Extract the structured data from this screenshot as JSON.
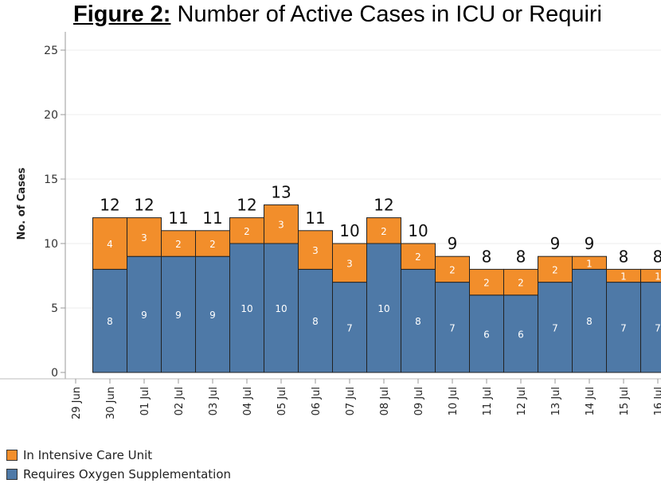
{
  "title": {
    "lead": "Figure 2:",
    "rest": "Number of Active Cases in ICU or Requiri"
  },
  "colors": {
    "icu": "#f28e2b",
    "oxygen": "#4e79a7",
    "grid": "#ececec",
    "axis": "#999999"
  },
  "chart_data": {
    "type": "bar",
    "stacked": true,
    "title": "Figure 2: Number of Active Cases in ICU or Requiri",
    "xlabel": "",
    "ylabel": "No. of Cases",
    "ylim": [
      0,
      26
    ],
    "yticks": [
      0,
      5,
      10,
      15,
      20,
      25
    ],
    "grid": true,
    "legend_position": "bottom-left",
    "categories": [
      "29 Jun",
      "30 Jun",
      "01 Jul",
      "02 Jul",
      "03 Jul",
      "04 Jul",
      "05 Jul",
      "06 Jul",
      "07 Jul",
      "08 Jul",
      "09 Jul",
      "10 Jul",
      "11 Jul",
      "12 Jul",
      "13 Jul",
      "14 Jul",
      "15 Jul",
      "16 Jul"
    ],
    "series": [
      {
        "name": "Requires Oxygen Supplementation",
        "color": "#4e79a7",
        "values": [
          null,
          8,
          9,
          9,
          9,
          10,
          10,
          8,
          7,
          10,
          8,
          7,
          6,
          6,
          7,
          8,
          7,
          7
        ]
      },
      {
        "name": "In Intensive Care Unit",
        "color": "#f28e2b",
        "values": [
          null,
          4,
          3,
          2,
          2,
          2,
          3,
          3,
          3,
          2,
          2,
          2,
          2,
          2,
          2,
          1,
          1,
          1
        ]
      }
    ],
    "totals": [
      null,
      12,
      12,
      11,
      11,
      12,
      13,
      11,
      10,
      12,
      10,
      9,
      8,
      8,
      9,
      9,
      8,
      8
    ]
  },
  "legend": [
    {
      "label": "In Intensive Care Unit",
      "color": "#f28e2b"
    },
    {
      "label": "Requires Oxygen Supplementation",
      "color": "#4e79a7"
    }
  ]
}
